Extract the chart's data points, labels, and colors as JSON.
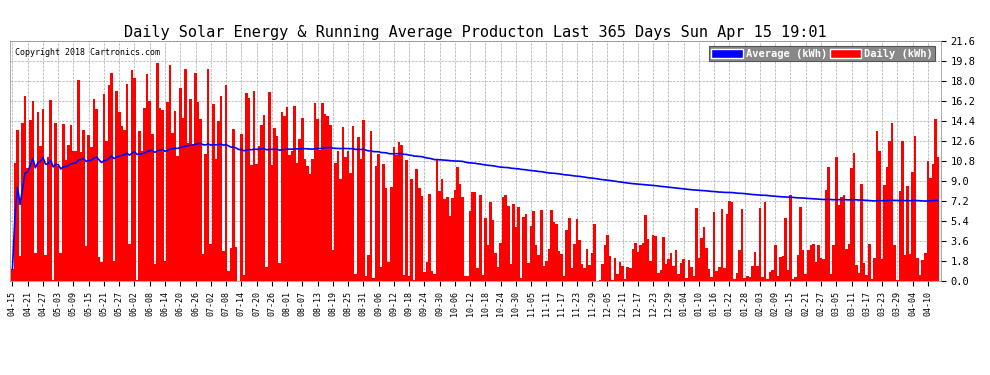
{
  "title": "Daily Solar Energy & Running Average Producton Last 365 Days Sun Apr 15 19:01",
  "copyright": "Copyright 2018 Cartronics.com",
  "legend_avg_label": "Average (kWh)",
  "legend_daily_label": "Daily (kWh)",
  "bar_color": "#ff0000",
  "avg_line_color": "#0000ff",
  "legend_avg_bg": "#0000ff",
  "legend_daily_bg": "#ff0000",
  "background_color": "#ffffff",
  "grid_color": "#aaaaaa",
  "yticks": [
    0.0,
    1.8,
    3.6,
    5.4,
    7.2,
    9.0,
    10.8,
    12.6,
    14.4,
    16.2,
    18.0,
    19.8,
    21.6
  ],
  "ymax": 21.6,
  "ymin": 0.0,
  "xlabel_fontsize": 6.0,
  "title_fontsize": 11,
  "figsize": [
    9.9,
    3.75
  ],
  "dpi": 100,
  "avg_line_value": 11.5
}
